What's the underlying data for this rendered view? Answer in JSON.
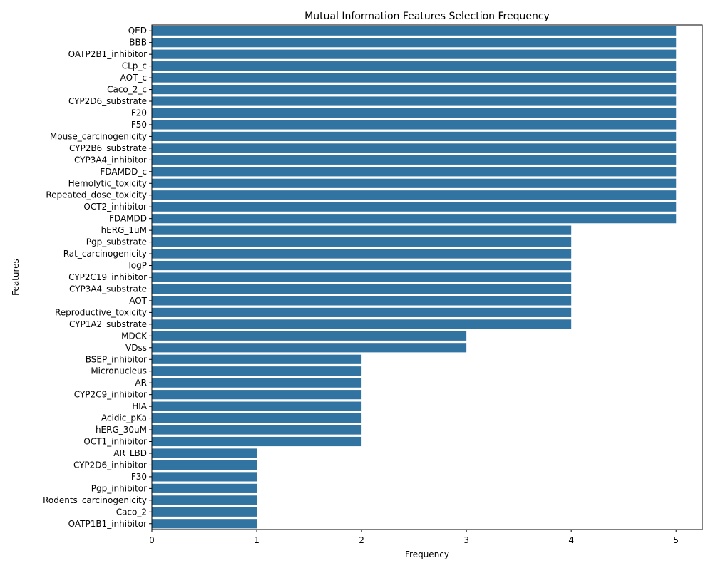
{
  "chart_data": {
    "type": "bar",
    "orientation": "horizontal",
    "title": "Mutual Information Features Selection Frequency",
    "xlabel": "Frequency",
    "ylabel": "Features",
    "xlim": [
      0,
      5.25
    ],
    "xticks": [
      0,
      1,
      2,
      3,
      4,
      5
    ],
    "grid": false,
    "bar_color": "#3274a1",
    "categories": [
      "QED",
      "BBB",
      "OATP2B1_inhibitor",
      "CLp_c",
      "AOT_c",
      "Caco_2_c",
      "CYP2D6_substrate",
      "F20",
      "F50",
      "Mouse_carcinogenicity",
      "CYP2B6_substrate",
      "CYP3A4_inhibitor",
      "FDAMDD_c",
      "Hemolytic_toxicity",
      "Repeated_dose_toxicity",
      "OCT2_inhibitor",
      "FDAMDD",
      "hERG_1uM",
      "Pgp_substrate",
      "Rat_carcinogenicity",
      "logP",
      "CYP2C19_inhibitor",
      "CYP3A4_substrate",
      "AOT",
      "Reproductive_toxicity",
      "CYP1A2_substrate",
      "MDCK",
      "VDss",
      "BSEP_inhibitor",
      "Micronucleus",
      "AR",
      "CYP2C9_inhibitor",
      "HIA",
      "Acidic_pKa",
      "hERG_30uM",
      "OCT1_inhibitor",
      "AR_LBD",
      "CYP2D6_inhibitor",
      "F30",
      "Pgp_inhibitor",
      "Rodents_carcinogenicity",
      "Caco_2",
      "OATP1B1_inhibitor"
    ],
    "values": [
      5,
      5,
      5,
      5,
      5,
      5,
      5,
      5,
      5,
      5,
      5,
      5,
      5,
      5,
      5,
      5,
      5,
      4,
      4,
      4,
      4,
      4,
      4,
      4,
      4,
      4,
      3,
      3,
      2,
      2,
      2,
      2,
      2,
      2,
      2,
      2,
      1,
      1,
      1,
      1,
      1,
      1,
      1
    ]
  }
}
